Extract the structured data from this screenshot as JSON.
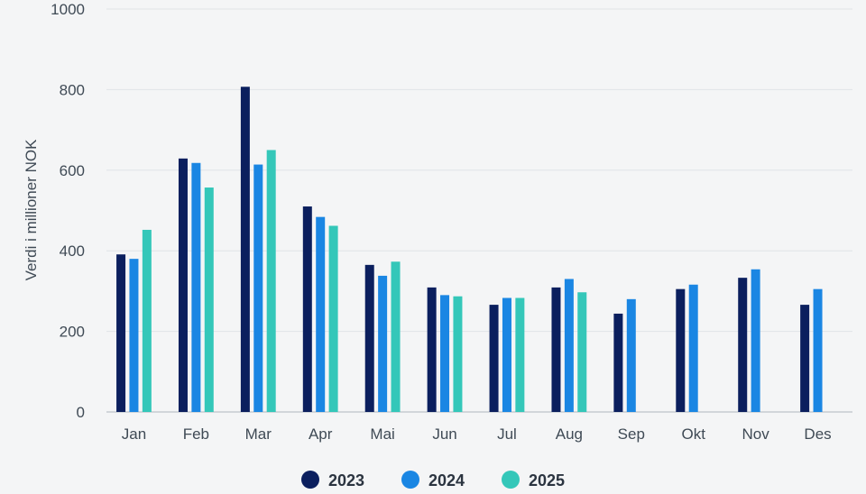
{
  "chart_data": {
    "type": "bar",
    "title": "",
    "xlabel": "",
    "ylabel": "Verdi i millioner NOK",
    "ylim": [
      0,
      1000
    ],
    "yticks": [
      0,
      200,
      400,
      600,
      800,
      1000
    ],
    "categories": [
      "Jan",
      "Feb",
      "Mar",
      "Apr",
      "Mai",
      "Jun",
      "Jul",
      "Aug",
      "Sep",
      "Okt",
      "Nov",
      "Des"
    ],
    "series": [
      {
        "name": "2023",
        "color": "#0b1f5e",
        "values": [
          391,
          629,
          807,
          510,
          365,
          309,
          266,
          309,
          244,
          305,
          333,
          266
        ]
      },
      {
        "name": "2024",
        "color": "#1a86e3",
        "values": [
          380,
          618,
          614,
          484,
          338,
          290,
          283,
          330,
          280,
          316,
          354,
          305
        ]
      },
      {
        "name": "2025",
        "color": "#34c7b9",
        "values": [
          452,
          557,
          650,
          462,
          373,
          287,
          283,
          297,
          null,
          null,
          null,
          null
        ]
      }
    ],
    "grid": true,
    "legend_position": "bottom-center"
  }
}
